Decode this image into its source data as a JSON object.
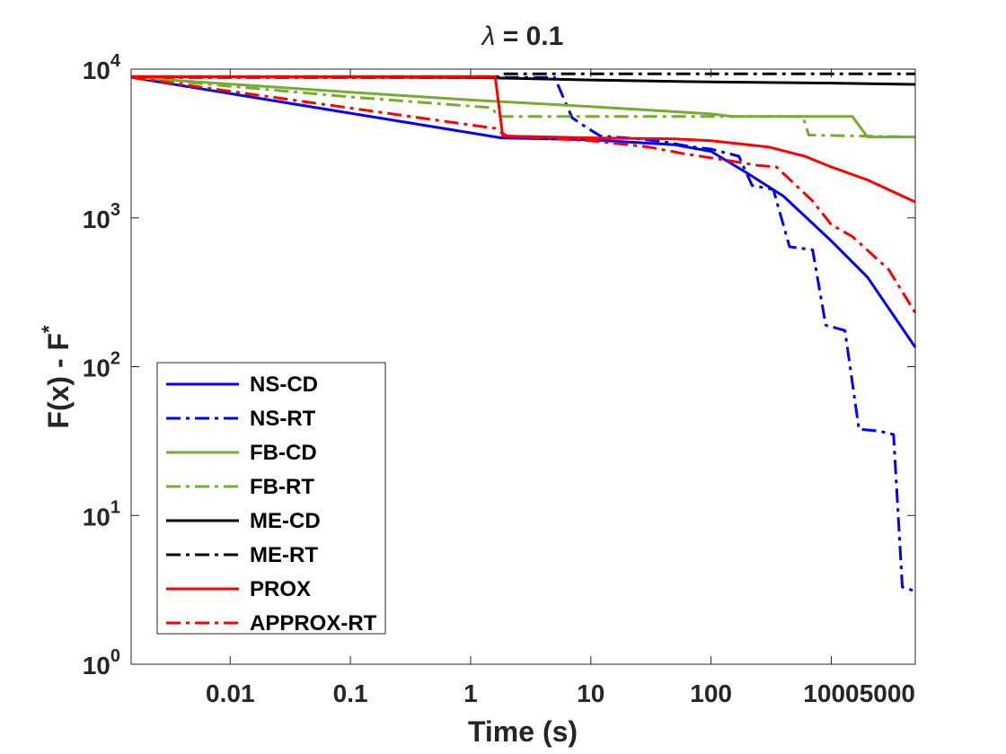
{
  "chart_data": {
    "type": "line",
    "title": {
      "symbol": "λ",
      "text": " = 0.1"
    },
    "xlabel": "Time (s)",
    "ylabel": {
      "base": "F(x) - F",
      "sup": "*"
    },
    "x_scale": "log",
    "y_scale": "log",
    "xlim": [
      0.0015,
      5000
    ],
    "ylim": [
      1,
      10000
    ],
    "x_ticks": [
      {
        "value": 0.01,
        "label": "0.01"
      },
      {
        "value": 0.1,
        "label": "0.1"
      },
      {
        "value": 1,
        "label": "1"
      },
      {
        "value": 10,
        "label": "10"
      },
      {
        "value": 100,
        "label": "100"
      },
      {
        "value": 1000,
        "label": "1000"
      },
      {
        "value": 5000,
        "label": "5000"
      }
    ],
    "y_ticks": [
      {
        "value": 1,
        "base": "10",
        "exp": "0"
      },
      {
        "value": 10,
        "base": "10",
        "exp": "1"
      },
      {
        "value": 100,
        "base": "10",
        "exp": "2"
      },
      {
        "value": 1000,
        "base": "10",
        "exp": "3"
      },
      {
        "value": 10000,
        "base": "10",
        "exp": "4"
      }
    ],
    "grid": false,
    "legend_position": "bottom-left",
    "series": [
      {
        "name": "NS-CD",
        "color": "#0000ff",
        "style": "solid",
        "points": [
          [
            0.0015,
            8800
          ],
          [
            1.8,
            3450
          ],
          [
            10,
            3350
          ],
          [
            50,
            3100
          ],
          [
            100,
            2800
          ],
          [
            200,
            2000
          ],
          [
            400,
            1400
          ],
          [
            1000,
            700
          ],
          [
            2000,
            400
          ],
          [
            5000,
            135
          ]
        ]
      },
      {
        "name": "NS-RT",
        "color": "#0000ff",
        "style": "dashdot",
        "points": [
          [
            0.0015,
            8800
          ],
          [
            5,
            8800
          ],
          [
            7,
            4700
          ],
          [
            9,
            4100
          ],
          [
            12,
            3550
          ],
          [
            25,
            3400
          ],
          [
            40,
            3250
          ],
          [
            70,
            3000
          ],
          [
            100,
            2900
          ],
          [
            170,
            2600
          ],
          [
            220,
            1650
          ],
          [
            330,
            1550
          ],
          [
            450,
            640
          ],
          [
            700,
            610
          ],
          [
            900,
            190
          ],
          [
            1300,
            175
          ],
          [
            1700,
            38
          ],
          [
            2500,
            37
          ],
          [
            3300,
            35
          ],
          [
            3900,
            3.3
          ],
          [
            5000,
            3.1
          ]
        ]
      },
      {
        "name": "FB-CD",
        "color": "#77ac30",
        "style": "solid",
        "points": [
          [
            0.0015,
            8800
          ],
          [
            0.1,
            7000
          ],
          [
            1,
            6200
          ],
          [
            10,
            5600
          ],
          [
            100,
            5000
          ],
          [
            150,
            4800
          ],
          [
            1500,
            4800
          ],
          [
            2000,
            3500
          ],
          [
            5000,
            3500
          ]
        ]
      },
      {
        "name": "FB-RT",
        "color": "#77ac30",
        "style": "dashdot",
        "points": [
          [
            0.0015,
            8800
          ],
          [
            0.1,
            6500
          ],
          [
            1.5,
            5500
          ],
          [
            1.7,
            4800
          ],
          [
            580,
            4800
          ],
          [
            650,
            3600
          ],
          [
            5000,
            3500
          ]
        ]
      },
      {
        "name": "ME-CD",
        "color": "#000000",
        "style": "solid",
        "points": [
          [
            0.0015,
            8900
          ],
          [
            1,
            8800
          ],
          [
            10,
            8450
          ],
          [
            100,
            8200
          ],
          [
            1000,
            8050
          ],
          [
            5000,
            7900
          ]
        ]
      },
      {
        "name": "ME-RT",
        "color": "#000000",
        "style": "dashdot",
        "points": [
          [
            0.0015,
            8900
          ],
          [
            1.7,
            8900
          ],
          [
            1.8,
            9300
          ],
          [
            5000,
            9300
          ]
        ]
      },
      {
        "name": "PROX",
        "color": "#ff0000",
        "style": "solid",
        "points": [
          [
            0.0015,
            8900
          ],
          [
            1.6,
            8900
          ],
          [
            1.85,
            3550
          ],
          [
            10,
            3450
          ],
          [
            50,
            3400
          ],
          [
            100,
            3300
          ],
          [
            300,
            3000
          ],
          [
            600,
            2600
          ],
          [
            1000,
            2200
          ],
          [
            2000,
            1800
          ],
          [
            5000,
            1280
          ]
        ]
      },
      {
        "name": "APPROX-RT",
        "color": "#ff0000",
        "style": "dashdot",
        "points": [
          [
            0.0015,
            8800
          ],
          [
            1.6,
            4000
          ],
          [
            2,
            3550
          ],
          [
            10,
            3300
          ],
          [
            30,
            3000
          ],
          [
            60,
            2700
          ],
          [
            130,
            2450
          ],
          [
            250,
            2250
          ],
          [
            350,
            2200
          ],
          [
            700,
            1300
          ],
          [
            1000,
            900
          ],
          [
            1500,
            750
          ],
          [
            3000,
            450
          ],
          [
            5000,
            230
          ]
        ]
      }
    ]
  }
}
